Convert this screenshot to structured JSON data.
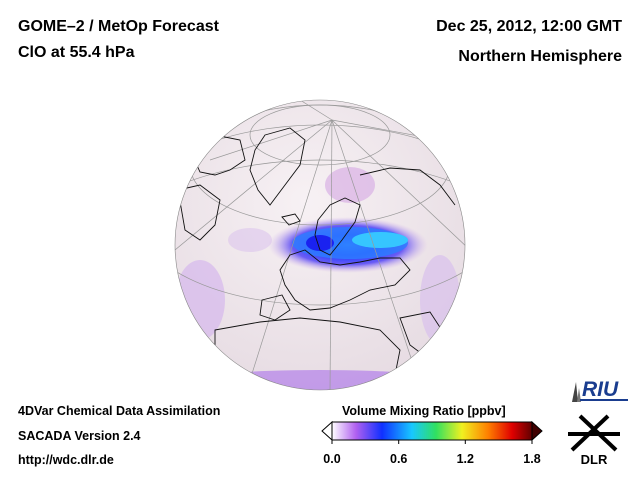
{
  "header": {
    "title": "GOME–2 / MetOp Forecast",
    "subtitle": "ClO at 55.4 hPa",
    "datetime": "Dec 25, 2012, 12:00 GMT",
    "region": "Northern Hemisphere"
  },
  "footer": {
    "line1": "4DVar Chemical Data Assimilation",
    "line2": "SACADA Version 2.4",
    "line3": "http://wdc.dlr.de"
  },
  "colorbar": {
    "title": "Volume Mixing Ratio [ppbv]",
    "ticks": [
      "0.0",
      "0.6",
      "1.2",
      "1.8"
    ],
    "min": 0.0,
    "max": 1.8,
    "colors": [
      "#ffffff",
      "#b060f0",
      "#1030ff",
      "#18c8ff",
      "#30e060",
      "#f0f020",
      "#ff8000",
      "#e00000",
      "#600000"
    ]
  },
  "logos": {
    "riu": "RIU",
    "dlr": "DLR"
  },
  "map": {
    "projection": "orthographic",
    "colors": {
      "background": "#f3ecf0",
      "coast": "#111111",
      "grid": "#9a9a9a",
      "low": "#d9b6e6",
      "mid": "#5a58ff",
      "high": "#1a2cff",
      "peak": "#30c8ff"
    }
  }
}
